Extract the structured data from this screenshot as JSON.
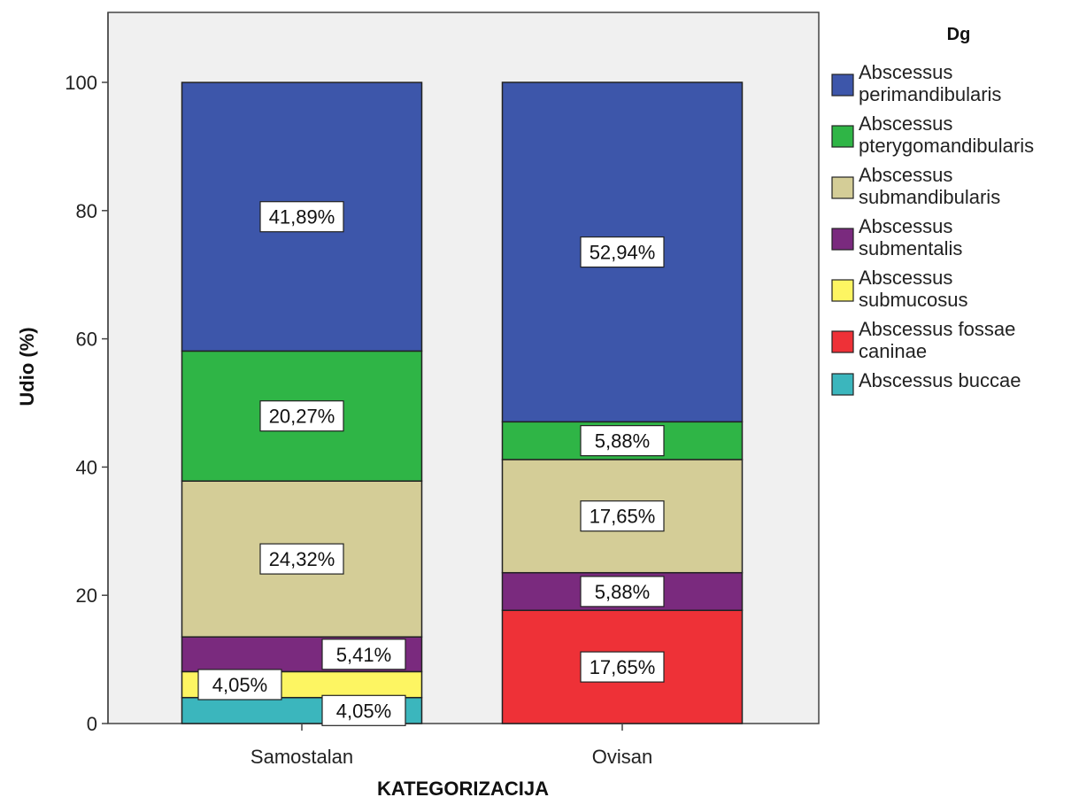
{
  "chart_data": {
    "type": "bar",
    "stacked": true,
    "title": "",
    "xlabel": "KATEGORIZACIJA",
    "ylabel": "Udio (%)",
    "ylim": [
      0,
      110
    ],
    "yticks": [
      "0",
      "20",
      "40",
      "60",
      "80",
      "100"
    ],
    "grid": false,
    "categories": [
      "Samostalan",
      "Ovisan"
    ],
    "legend": {
      "title": "Dg",
      "position": "right"
    },
    "series": [
      {
        "name": "Abscessus buccae",
        "legend_lines": [
          "Abscessus buccae"
        ],
        "color": "#3bb6bd",
        "values": [
          4.05,
          0
        ],
        "labels": [
          "4,05%",
          ""
        ]
      },
      {
        "name": "Abscessus fossae caninae",
        "legend_lines": [
          "Abscessus fossae",
          "caninae"
        ],
        "color": "#ee3137",
        "values": [
          0,
          17.65
        ],
        "labels": [
          "",
          "17,65%"
        ]
      },
      {
        "name": "Abscessus submucosus",
        "legend_lines": [
          "Abscessus",
          "submucosus"
        ],
        "color": "#fdf562",
        "values": [
          4.05,
          0
        ],
        "labels": [
          "4,05%",
          ""
        ]
      },
      {
        "name": "Abscessus submentalis",
        "legend_lines": [
          "Abscessus",
          "submentalis"
        ],
        "color": "#7a2a7e",
        "values": [
          5.41,
          5.88
        ],
        "labels": [
          "5,41%",
          "5,88%"
        ]
      },
      {
        "name": "Abscessus submandibularis",
        "legend_lines": [
          "Abscessus",
          "submandibularis"
        ],
        "color": "#d4cd97",
        "values": [
          24.32,
          17.65
        ],
        "labels": [
          "24,32%",
          "17,65%"
        ]
      },
      {
        "name": "Abscessus pterygomandibularis",
        "legend_lines": [
          "Abscessus",
          "pterygomandibularis"
        ],
        "color": "#2fb546",
        "values": [
          20.27,
          5.88
        ],
        "labels": [
          "20,27%",
          "5,88%"
        ]
      },
      {
        "name": "Abscessus perimandibularis",
        "legend_lines": [
          "Abscessus",
          "perimandibularis"
        ],
        "color": "#3d56aa",
        "values": [
          41.89,
          52.94
        ],
        "labels": [
          "41,89%",
          "52,94%"
        ]
      }
    ]
  }
}
